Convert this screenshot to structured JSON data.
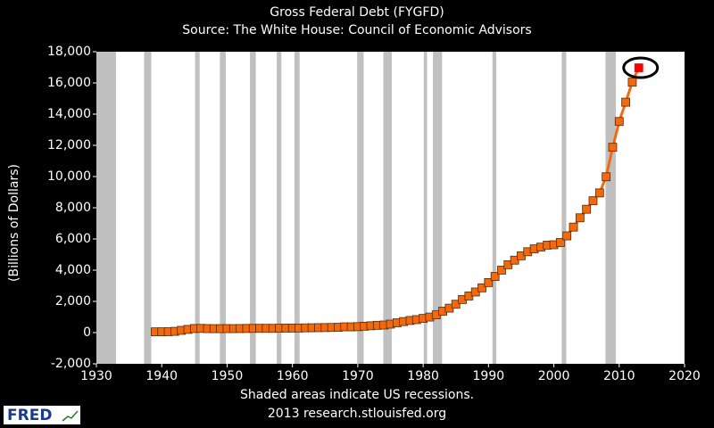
{
  "chart_data": {
    "type": "line",
    "title": "Gross Federal Debt (FYGFD)",
    "subtitle": "Source: The White House: Council of Economic Advisors",
    "y_label": "(Billions of Dollars)",
    "note": "Shaded areas indicate US recessions.",
    "source": "2013 research.stlouisfed.org",
    "logo": "FRED",
    "xlim": [
      1930,
      2020
    ],
    "xticks": [
      1930,
      1940,
      1950,
      1960,
      1970,
      1980,
      1990,
      2000,
      2010,
      2020
    ],
    "ylim": [
      -2000,
      18000
    ],
    "yticks": [
      {
        "value": -2000,
        "label": "-2,000"
      },
      0,
      {
        "value": 2000,
        "label": "2,000"
      },
      {
        "value": 4000,
        "label": "4,000"
      },
      {
        "value": 6000,
        "label": "6,000"
      },
      {
        "value": 8000,
        "label": "8,000"
      },
      {
        "value": 10000,
        "label": "10,000"
      },
      {
        "value": 12000,
        "label": "12,000"
      },
      {
        "value": 14000,
        "label": "14,000"
      },
      {
        "value": 16000,
        "label": "16,000"
      },
      {
        "value": 18000,
        "label": "18,000"
      }
    ],
    "recessions": [
      [
        1930,
        1933
      ],
      [
        1937.3,
        1938.4
      ],
      [
        1945.1,
        1945.8
      ],
      [
        1948.9,
        1949.8
      ],
      [
        1953.5,
        1954.4
      ],
      [
        1957.6,
        1958.3
      ],
      [
        1960.3,
        1961.1
      ],
      [
        1969.9,
        1970.9
      ],
      [
        1973.9,
        1975.2
      ],
      [
        1980.1,
        1980.6
      ],
      [
        1981.5,
        1982.9
      ],
      [
        1990.6,
        1991.2
      ],
      [
        2001.2,
        2001.9
      ],
      [
        2007.9,
        2009.5
      ]
    ],
    "recession_color": "#c0c0c0",
    "highlight_color": "#ff0000",
    "x": [
      1939,
      1940,
      1941,
      1942,
      1943,
      1944,
      1945,
      1946,
      1947,
      1948,
      1949,
      1950,
      1951,
      1952,
      1953,
      1954,
      1955,
      1956,
      1957,
      1958,
      1959,
      1960,
      1961,
      1962,
      1963,
      1964,
      1965,
      1966,
      1967,
      1968,
      1969,
      1970,
      1971,
      1972,
      1973,
      1974,
      1975,
      1976,
      1977,
      1978,
      1979,
      1980,
      1981,
      1982,
      1983,
      1984,
      1985,
      1986,
      1987,
      1988,
      1989,
      1990,
      1991,
      1992,
      1993,
      1994,
      1995,
      1996,
      1997,
      1998,
      1999,
      2000,
      2001,
      2002,
      2003,
      2004,
      2005,
      2006,
      2007,
      2008,
      2009,
      2010,
      2011,
      2012,
      2013
    ],
    "series": [
      {
        "name": "FYGFD",
        "color": "#f26a10",
        "values": [
          48,
          51,
          58,
          79,
          143,
          204,
          260,
          271,
          257,
          252,
          253,
          257,
          255,
          259,
          266,
          271,
          274,
          273,
          272,
          280,
          288,
          291,
          293,
          303,
          310,
          316,
          322,
          329,
          340,
          369,
          366,
          381,
          408,
          436,
          466,
          484,
          542,
          629,
          706,
          777,
          830,
          909,
          995,
          1137,
          1372,
          1565,
          1817,
          2121,
          2346,
          2601,
          2868,
          3206,
          3598,
          4002,
          4351,
          4643,
          4921,
          5182,
          5369,
          5478,
          5606,
          5629,
          5770,
          6198,
          6760,
          7355,
          7905,
          8451,
          8951,
          9986,
          11876,
          13529,
          14764,
          16051,
          16970
        ]
      }
    ]
  }
}
